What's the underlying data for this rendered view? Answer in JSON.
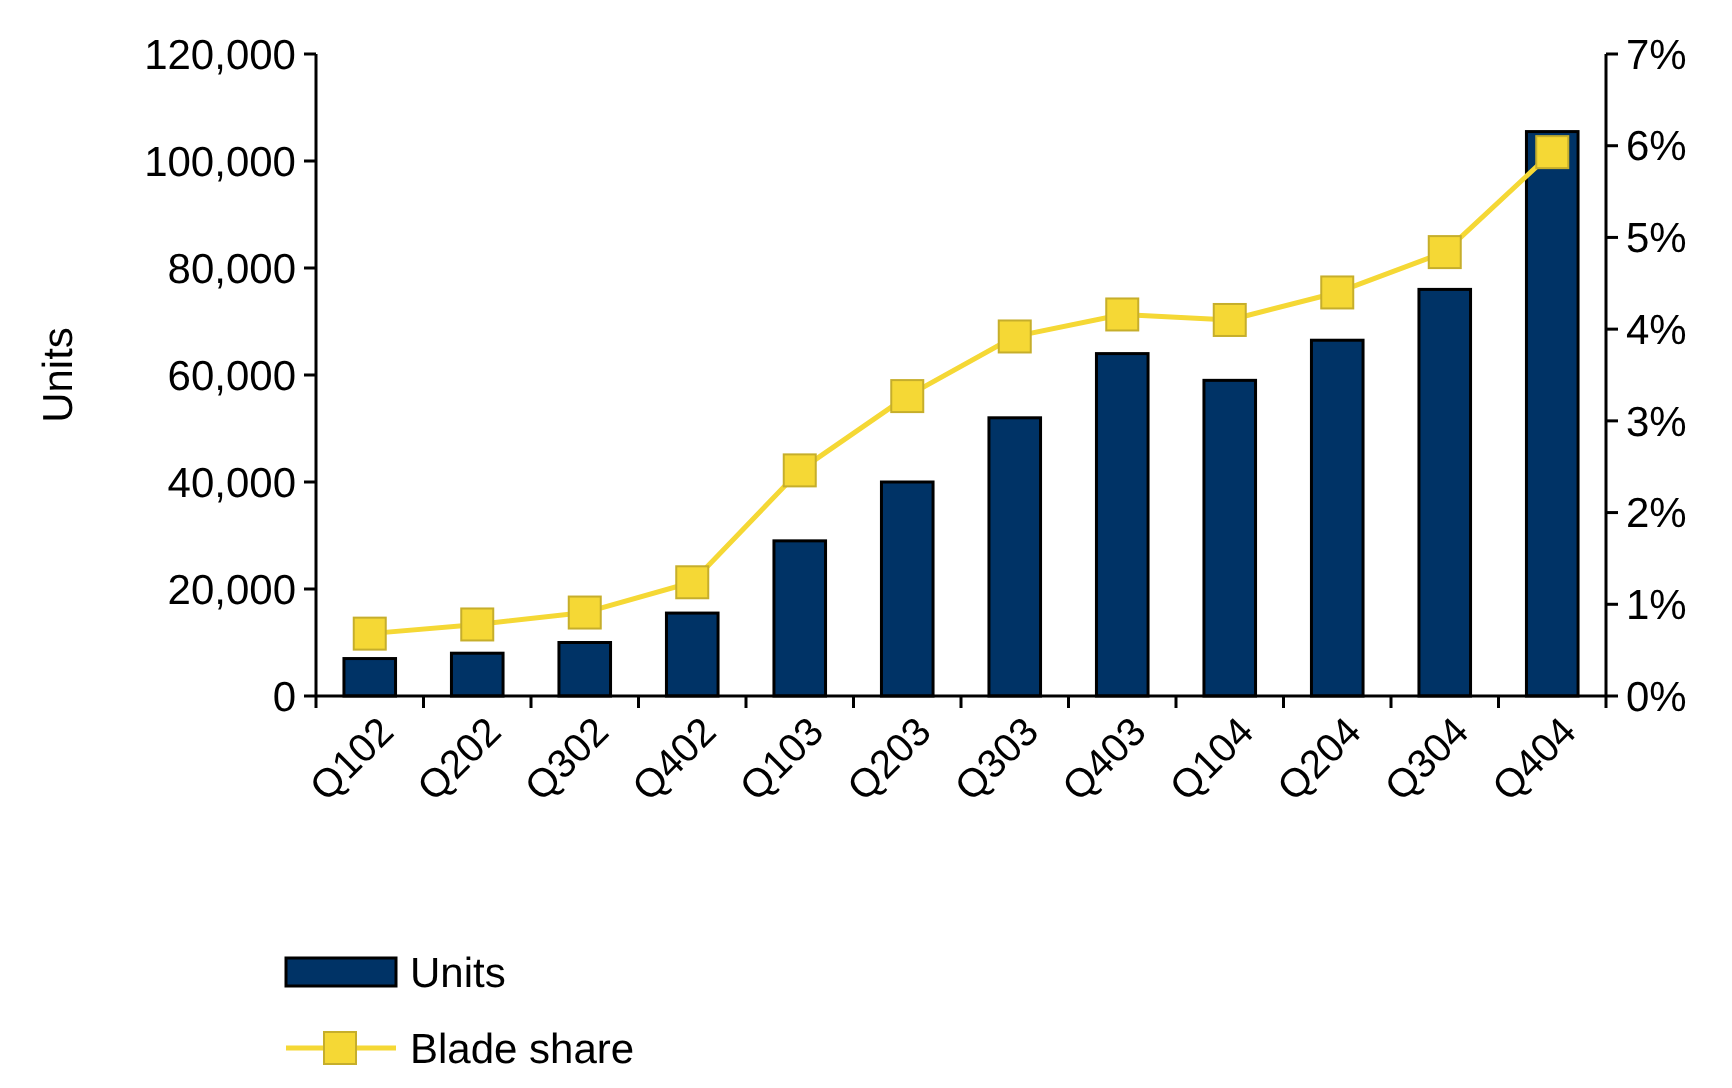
{
  "chart_data": {
    "type": "bar",
    "categories": [
      "Q102",
      "Q202",
      "Q302",
      "Q402",
      "Q103",
      "Q203",
      "Q303",
      "Q403",
      "Q104",
      "Q204",
      "Q304",
      "Q404"
    ],
    "ylabel": "Units",
    "ylim": [
      0,
      120000
    ],
    "yticks": [
      {
        "value": 0,
        "label": "0"
      },
      {
        "value": 20000,
        "label": "20,000"
      },
      {
        "value": 40000,
        "label": "40,000"
      },
      {
        "value": 60000,
        "label": "60,000"
      },
      {
        "value": 80000,
        "label": "80,000"
      },
      {
        "value": 100000,
        "label": "100,000"
      },
      {
        "value": 120000,
        "label": "120,000"
      }
    ],
    "y2lim": [
      0,
      7
    ],
    "y2ticks": [
      {
        "value": 0,
        "label": "0%"
      },
      {
        "value": 1,
        "label": "1%"
      },
      {
        "value": 2,
        "label": "2%"
      },
      {
        "value": 3,
        "label": "3%"
      },
      {
        "value": 4,
        "label": "4%"
      },
      {
        "value": 5,
        "label": "5%"
      },
      {
        "value": 6,
        "label": "6%"
      },
      {
        "value": 7,
        "label": "7%"
      }
    ],
    "series": [
      {
        "name": "Units",
        "color": "#003366",
        "values": [
          7000,
          8000,
          10000,
          15500,
          29000,
          40000,
          52000,
          64000,
          59000,
          66500,
          76000,
          105500
        ]
      },
      {
        "name": "Blade share",
        "type": "line",
        "axis": "y2",
        "color": "#f5d835",
        "marker": "square",
        "values": [
          0.68,
          0.78,
          0.91,
          1.24,
          2.46,
          3.27,
          3.92,
          4.16,
          4.1,
          4.4,
          4.84,
          5.93
        ]
      }
    ],
    "legend": "bottom",
    "grid": false
  }
}
